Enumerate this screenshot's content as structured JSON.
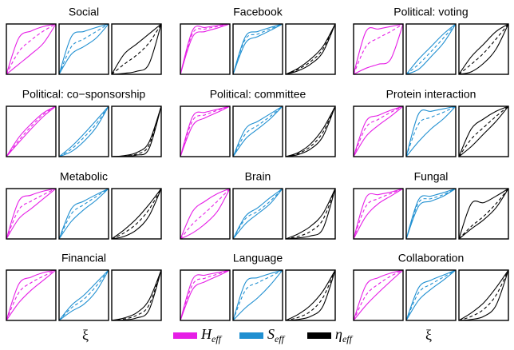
{
  "chart_data": {
    "type": "line",
    "x": [
      0,
      0.25,
      0.5,
      0.75,
      1
    ],
    "xlim": [
      0,
      1
    ],
    "ylim": [
      0,
      1
    ],
    "xlabel": "ξ",
    "series_info": [
      {
        "symbol": "H",
        "subscript": "eff",
        "color": "#e61ee6"
      },
      {
        "symbol": "S",
        "subscript": "eff",
        "color": "#1f8fd1"
      },
      {
        "symbol": "η",
        "subscript": "eff",
        "color": "#000000"
      }
    ],
    "panels": [
      {
        "title": "Social",
        "series": [
          {
            "lower": [
              0,
              0.2,
              0.4,
              0.62,
              1
            ],
            "median": [
              0,
              0.45,
              0.68,
              0.86,
              1
            ],
            "upper": [
              0,
              0.72,
              0.86,
              0.95,
              1
            ]
          },
          {
            "lower": [
              0,
              0.4,
              0.55,
              0.72,
              1
            ],
            "median": [
              0,
              0.55,
              0.7,
              0.85,
              1
            ],
            "upper": [
              0,
              0.75,
              0.85,
              0.93,
              1
            ]
          },
          {
            "lower": [
              0,
              0.02,
              0.06,
              0.2,
              1
            ],
            "median": [
              0,
              0.2,
              0.38,
              0.62,
              1
            ],
            "upper": [
              0,
              0.4,
              0.6,
              0.8,
              1
            ]
          }
        ]
      },
      {
        "title": "Facebook",
        "series": [
          {
            "lower": [
              0,
              0.75,
              0.85,
              0.92,
              1
            ],
            "median": [
              0,
              0.82,
              0.9,
              0.95,
              1
            ],
            "upper": [
              0,
              0.88,
              0.93,
              0.97,
              1
            ]
          },
          {
            "lower": [
              0,
              0.62,
              0.75,
              0.87,
              1
            ],
            "median": [
              0,
              0.7,
              0.8,
              0.9,
              1
            ],
            "upper": [
              0,
              0.75,
              0.85,
              0.93,
              1
            ]
          },
          {
            "lower": [
              0,
              0.07,
              0.2,
              0.44,
              1
            ],
            "median": [
              0,
              0.1,
              0.25,
              0.5,
              1
            ],
            "upper": [
              0,
              0.12,
              0.3,
              0.55,
              1
            ]
          }
        ]
      },
      {
        "title": "Political: voting",
        "series": [
          {
            "lower": [
              0,
              0.12,
              0.2,
              0.3,
              1
            ],
            "median": [
              0,
              0.55,
              0.72,
              0.85,
              1
            ],
            "upper": [
              0,
              0.85,
              0.9,
              0.95,
              1
            ]
          },
          {
            "lower": [
              0,
              0.1,
              0.35,
              0.62,
              1
            ],
            "median": [
              0,
              0.2,
              0.45,
              0.72,
              1
            ],
            "upper": [
              0,
              0.3,
              0.55,
              0.8,
              1
            ]
          },
          {
            "lower": [
              0,
              0.05,
              0.22,
              0.5,
              1
            ],
            "median": [
              0,
              0.2,
              0.42,
              0.7,
              1
            ],
            "upper": [
              0,
              0.35,
              0.6,
              0.85,
              1
            ]
          }
        ]
      },
      {
        "title": "Political: co−sponsorship",
        "series": [
          {
            "lower": [
              0,
              0.28,
              0.55,
              0.8,
              1
            ],
            "median": [
              0,
              0.32,
              0.6,
              0.84,
              1
            ],
            "upper": [
              0,
              0.38,
              0.65,
              0.87,
              1
            ]
          },
          {
            "lower": [
              0,
              0.1,
              0.3,
              0.58,
              1
            ],
            "median": [
              0,
              0.15,
              0.38,
              0.65,
              1
            ],
            "upper": [
              0,
              0.2,
              0.45,
              0.72,
              1
            ]
          },
          {
            "lower": [
              0,
              0.01,
              0.03,
              0.15,
              1
            ],
            "median": [
              0,
              0.01,
              0.05,
              0.22,
              1
            ],
            "upper": [
              0,
              0.02,
              0.08,
              0.28,
              1
            ]
          }
        ]
      },
      {
        "title": "Political: committee",
        "series": [
          {
            "lower": [
              0,
              0.62,
              0.77,
              0.88,
              1
            ],
            "median": [
              0,
              0.72,
              0.83,
              0.92,
              1
            ],
            "upper": [
              0,
              0.8,
              0.88,
              0.94,
              1
            ]
          },
          {
            "lower": [
              0,
              0.35,
              0.55,
              0.75,
              1
            ],
            "median": [
              0,
              0.45,
              0.62,
              0.8,
              1
            ],
            "upper": [
              0,
              0.55,
              0.7,
              0.85,
              1
            ]
          },
          {
            "lower": [
              0,
              0.04,
              0.15,
              0.4,
              1
            ],
            "median": [
              0,
              0.06,
              0.2,
              0.48,
              1
            ],
            "upper": [
              0,
              0.08,
              0.25,
              0.55,
              1
            ]
          }
        ]
      },
      {
        "title": "Protein interaction",
        "series": [
          {
            "lower": [
              0,
              0.4,
              0.62,
              0.8,
              1
            ],
            "median": [
              0,
              0.58,
              0.74,
              0.88,
              1
            ],
            "upper": [
              0,
              0.7,
              0.82,
              0.92,
              1
            ]
          },
          {
            "lower": [
              0,
              0.3,
              0.55,
              0.75,
              1
            ],
            "median": [
              0,
              0.65,
              0.78,
              0.88,
              1
            ],
            "upper": [
              0,
              0.85,
              0.9,
              0.95,
              1
            ]
          },
          {
            "lower": [
              0,
              0.2,
              0.45,
              0.7,
              1
            ],
            "median": [
              0,
              0.35,
              0.58,
              0.8,
              1
            ],
            "upper": [
              0,
              0.55,
              0.75,
              0.9,
              1
            ]
          }
        ]
      },
      {
        "title": "Metabolic",
        "series": [
          {
            "lower": [
              0,
              0.4,
              0.6,
              0.8,
              1
            ],
            "median": [
              0,
              0.58,
              0.75,
              0.88,
              1
            ],
            "upper": [
              0,
              0.75,
              0.87,
              0.95,
              1
            ]
          },
          {
            "lower": [
              0,
              0.35,
              0.58,
              0.77,
              1
            ],
            "median": [
              0,
              0.5,
              0.68,
              0.84,
              1
            ],
            "upper": [
              0,
              0.6,
              0.75,
              0.88,
              1
            ]
          },
          {
            "lower": [
              0,
              0.05,
              0.18,
              0.45,
              1
            ],
            "median": [
              0,
              0.12,
              0.3,
              0.58,
              1
            ],
            "upper": [
              0,
              0.18,
              0.4,
              0.68,
              1
            ]
          }
        ]
      },
      {
        "title": "Brain",
        "series": [
          {
            "lower": [
              0,
              0.12,
              0.3,
              0.55,
              1
            ],
            "median": [
              0,
              0.3,
              0.52,
              0.75,
              1
            ],
            "upper": [
              0,
              0.55,
              0.75,
              0.9,
              1
            ]
          },
          {
            "lower": [
              0,
              0.3,
              0.5,
              0.7,
              1
            ],
            "median": [
              0,
              0.4,
              0.55,
              0.75,
              1
            ],
            "upper": [
              0,
              0.45,
              0.62,
              0.82,
              1
            ]
          },
          {
            "lower": [
              0,
              0.02,
              0.06,
              0.2,
              1
            ],
            "median": [
              0,
              0.05,
              0.15,
              0.38,
              1
            ],
            "upper": [
              0,
              0.1,
              0.25,
              0.5,
              1
            ]
          }
        ]
      },
      {
        "title": "Fungal",
        "series": [
          {
            "lower": [
              0,
              0.45,
              0.7,
              0.85,
              1
            ],
            "median": [
              0,
              0.65,
              0.8,
              0.9,
              1
            ],
            "upper": [
              0,
              0.82,
              0.88,
              0.93,
              1
            ]
          },
          {
            "lower": [
              0,
              0.65,
              0.75,
              0.85,
              1
            ],
            "median": [
              0,
              0.72,
              0.8,
              0.88,
              1
            ],
            "upper": [
              0,
              0.78,
              0.85,
              0.92,
              1
            ]
          },
          {
            "lower": [
              0,
              0.2,
              0.38,
              0.62,
              1
            ],
            "median": [
              0,
              0.25,
              0.45,
              0.7,
              1
            ],
            "upper": [
              0,
              0.7,
              0.72,
              0.85,
              1
            ]
          }
        ]
      },
      {
        "title": "Financial",
        "series": [
          {
            "lower": [
              0,
              0.35,
              0.6,
              0.8,
              1
            ],
            "median": [
              0,
              0.55,
              0.75,
              0.88,
              1
            ],
            "upper": [
              0,
              0.72,
              0.86,
              0.95,
              1
            ]
          },
          {
            "lower": [
              0,
              0.18,
              0.32,
              0.58,
              1
            ],
            "median": [
              0,
              0.25,
              0.42,
              0.68,
              1
            ],
            "upper": [
              0,
              0.3,
              0.5,
              0.75,
              1
            ]
          },
          {
            "lower": [
              0,
              0.01,
              0.05,
              0.2,
              1
            ],
            "median": [
              0,
              0.03,
              0.1,
              0.3,
              1
            ],
            "upper": [
              0,
              0.05,
              0.15,
              0.4,
              1
            ]
          }
        ]
      },
      {
        "title": "Language",
        "series": [
          {
            "lower": [
              0,
              0.62,
              0.77,
              0.88,
              1
            ],
            "median": [
              0,
              0.72,
              0.84,
              0.92,
              1
            ],
            "upper": [
              0,
              0.82,
              0.9,
              0.95,
              1
            ]
          },
          {
            "lower": [
              0,
              0.25,
              0.45,
              0.7,
              1
            ],
            "median": [
              0,
              0.6,
              0.75,
              0.87,
              1
            ],
            "upper": [
              0,
              0.75,
              0.85,
              0.93,
              1
            ]
          },
          {
            "lower": [
              0,
              0.02,
              0.08,
              0.28,
              1
            ],
            "median": [
              0,
              0.06,
              0.18,
              0.45,
              1
            ],
            "upper": [
              0,
              0.12,
              0.3,
              0.58,
              1
            ]
          }
        ]
      },
      {
        "title": "Collaboration",
        "series": [
          {
            "lower": [
              0,
              0.3,
              0.55,
              0.78,
              1
            ],
            "median": [
              0,
              0.5,
              0.72,
              0.88,
              1
            ],
            "upper": [
              0,
              0.7,
              0.85,
              0.94,
              1
            ]
          },
          {
            "lower": [
              0,
              0.4,
              0.62,
              0.8,
              1
            ],
            "median": [
              0,
              0.55,
              0.72,
              0.86,
              1
            ],
            "upper": [
              0,
              0.65,
              0.8,
              0.9,
              1
            ]
          },
          {
            "lower": [
              0,
              0.02,
              0.08,
              0.3,
              1
            ],
            "median": [
              0,
              0.08,
              0.22,
              0.5,
              1
            ],
            "upper": [
              0,
              0.15,
              0.35,
              0.65,
              1
            ]
          }
        ]
      }
    ]
  }
}
